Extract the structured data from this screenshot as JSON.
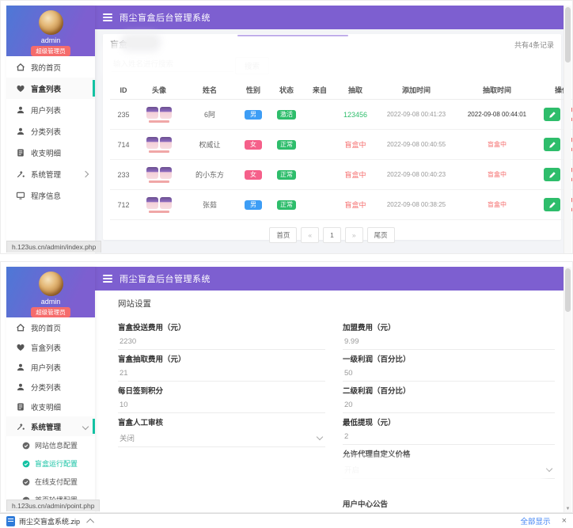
{
  "topbar": {
    "title": "雨尘盲盒后台管理系统"
  },
  "sidebar": {
    "username": "admin",
    "role_badge": "超级管理员",
    "items": [
      {
        "label": "我的首页",
        "icon": "home-icon"
      },
      {
        "label": "盲盒列表",
        "icon": "heart-icon"
      },
      {
        "label": "用户列表",
        "icon": "user-icon"
      },
      {
        "label": "分类列表",
        "icon": "user-icon"
      },
      {
        "label": "收支明细",
        "icon": "bill-icon"
      },
      {
        "label": "系统管理",
        "icon": "wand-icon"
      },
      {
        "label": "程序信息",
        "icon": "monitor-icon"
      }
    ],
    "submenu": [
      {
        "label": "网站信息配置"
      },
      {
        "label": "盲盒运行配置"
      },
      {
        "label": "在线支付配置"
      },
      {
        "label": "首页轮播配置"
      }
    ]
  },
  "screen1": {
    "active_menu": 1,
    "page_title": "盲盒",
    "records_total": "共有4条记录",
    "search_placeholder": "输入姓名进行搜索",
    "search_button": "搜索",
    "table": {
      "columns": [
        "ID",
        "头像",
        "姓名",
        "性别",
        "状态",
        "来自",
        "抽取",
        "添加时间",
        "抽取时间",
        "操作"
      ],
      "rows": [
        {
          "id": "235",
          "name": "6阿",
          "gender": "男",
          "gender_color": "#3d9df5",
          "status": "激活",
          "status_color": "#2ebd6b",
          "from": "",
          "draw": "123456",
          "draw_color": "#2ebd6b",
          "added": "2022-09-08 00:41:23",
          "drawn": "2022-09-08 00:44:01",
          "drawn_color": "#333333"
        },
        {
          "id": "714",
          "name": "权威让",
          "gender": "女",
          "gender_color": "#f5608a",
          "status": "正常",
          "status_color": "#2ebd6b",
          "from": "",
          "draw": "盲盒中",
          "draw_color": "#f56c6c",
          "added": "2022-09-08 00:40:55",
          "drawn": "盲盒中",
          "drawn_color": "#f56c6c"
        },
        {
          "id": "233",
          "name": "的小东方",
          "gender": "女",
          "gender_color": "#f5608a",
          "status": "正常",
          "status_color": "#2ebd6b",
          "from": "",
          "draw": "盲盒中",
          "draw_color": "#f56c6c",
          "added": "2022-09-08 00:40:23",
          "drawn": "盲盒中",
          "drawn_color": "#f56c6c"
        },
        {
          "id": "712",
          "name": "张茹",
          "gender": "男",
          "gender_color": "#3d9df5",
          "status": "正常",
          "status_color": "#2ebd6b",
          "from": "",
          "draw": "盲盒中",
          "draw_color": "#f56c6c",
          "added": "2022-09-08 00:38:25",
          "drawn": "盲盒中",
          "drawn_color": "#f56c6c"
        }
      ]
    },
    "pagination": [
      "首页",
      "«",
      "1",
      "»",
      "尾页"
    ],
    "statusbar_url": "h.123us.cn/admin/index.php"
  },
  "screen2": {
    "active_menu": 5,
    "submenu_active": 1,
    "page_title": "网站设置",
    "fields_left": [
      {
        "label": "盲盒投送费用（元）",
        "value": "2230",
        "type": "input"
      },
      {
        "label": "盲盒抽取费用（元）",
        "value": "21",
        "type": "input"
      },
      {
        "label": "每日签到积分",
        "value": "10",
        "type": "input"
      },
      {
        "label": "盲盒人工审核",
        "value": "关闭",
        "type": "select"
      }
    ],
    "fields_right": [
      {
        "label": "加盟费用（元）",
        "value": "9.99",
        "type": "input"
      },
      {
        "label": "一级利润（百分比）",
        "value": "50",
        "type": "input"
      },
      {
        "label": "二级利润（百分比）",
        "value": "20",
        "type": "input"
      },
      {
        "label": "最低提现（元）",
        "value": "2",
        "type": "input"
      },
      {
        "label": "允许代理自定义价格",
        "value": "开启",
        "type": "select"
      }
    ],
    "notice_label": "用户中心公告",
    "statusbar_url": "h.123us.cn/admin/point.php"
  },
  "download_bar": {
    "filename": "雨尘交盲盒系统.zip",
    "show_all": "全部显示"
  },
  "colors": {
    "purple": "#7d5fd0",
    "teal": "#13c2a3",
    "green": "#2ebd6b",
    "red": "#f56c6c"
  }
}
